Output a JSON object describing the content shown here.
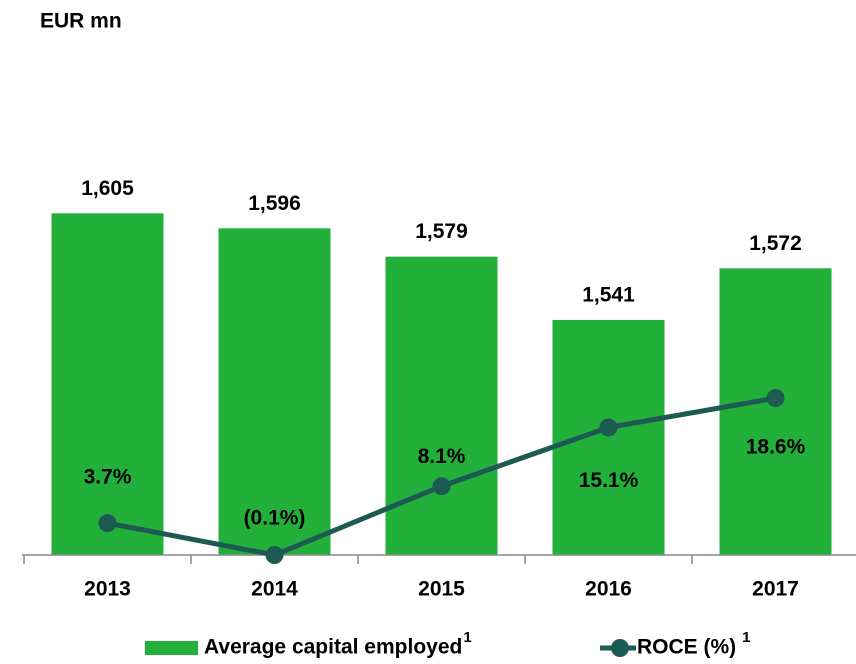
{
  "chart_data": {
    "type": "bar_line",
    "title": "EUR mn",
    "categories": [
      "2013",
      "2014",
      "2015",
      "2016",
      "2017"
    ],
    "ylim": [
      1400,
      1700
    ],
    "y2lim": [
      -0.1,
      59.5
    ],
    "series": [
      {
        "name": "Average capital employed",
        "superscript": "1",
        "type": "bar",
        "color": "#22b03b",
        "values": [
          1605,
          1596,
          1579,
          1541,
          1572
        ],
        "value_labels": [
          "1,605",
          "1,596",
          "1,579",
          "1,541",
          "1,572"
        ]
      },
      {
        "name": "ROCE (%)",
        "superscript": "1",
        "type": "line",
        "axis": "y2",
        "color": "#1d5a52",
        "values": [
          3.7,
          -0.1,
          8.1,
          15.1,
          18.6
        ],
        "value_labels": [
          "3.7%",
          "(0.1%)",
          "8.1%",
          "15.1%",
          "18.6%"
        ]
      }
    ]
  }
}
